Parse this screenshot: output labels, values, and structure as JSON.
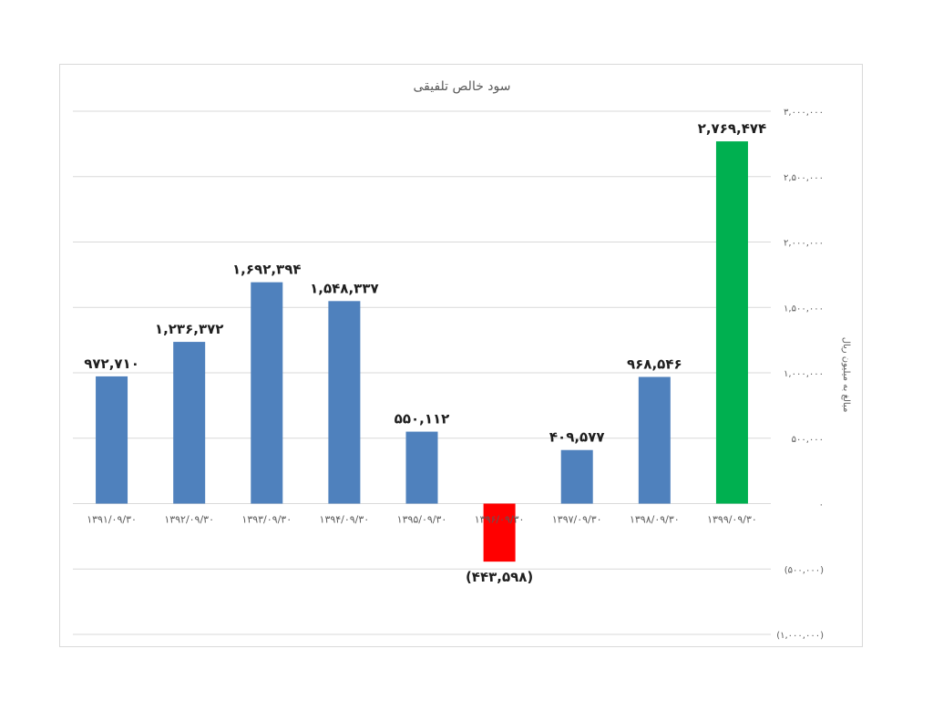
{
  "chart_data": {
    "type": "bar",
    "title": "سود خالص تلفیقی",
    "ylabel": "مبالغ به میلیون ریال",
    "xlabel": "",
    "ylim": [
      -1000000,
      3000000
    ],
    "grid": true,
    "categories": [
      "۱۳۹۱/۰۹/۳۰",
      "۱۳۹۲/۰۹/۳۰",
      "۱۳۹۳/۰۹/۳۰",
      "۱۳۹۴/۰۹/۳۰",
      "۱۳۹۵/۰۹/۳۰",
      "۱۳۹۶/۰۹/۳۰",
      "۱۳۹۷/۰۹/۳۰",
      "۱۳۹۸/۰۹/۳۰",
      "۱۳۹۹/۰۹/۳۰"
    ],
    "values": [
      972710,
      1236372,
      1692394,
      1548337,
      550112,
      -443598,
      409577,
      968546,
      2769474
    ],
    "data_labels": [
      "۹۷۲,۷۱۰",
      "۱,۲۳۶,۳۷۲",
      "۱,۶۹۲,۳۹۴",
      "۱,۵۴۸,۳۳۷",
      "۵۵۰,۱۱۲",
      "(۴۴۳,۵۹۸)",
      "۴۰۹,۵۷۷",
      "۹۶۸,۵۴۶",
      "۲,۷۶۹,۴۷۴"
    ],
    "bar_colors": [
      "#4f81bd",
      "#4f81bd",
      "#4f81bd",
      "#4f81bd",
      "#4f81bd",
      "#ff0000",
      "#4f81bd",
      "#4f81bd",
      "#00b050"
    ],
    "yticks": [
      {
        "value": 3000000,
        "label": "۳,۰۰۰,۰۰۰",
        "color": "#595959"
      },
      {
        "value": 2500000,
        "label": "۲,۵۰۰,۰۰۰",
        "color": "#595959"
      },
      {
        "value": 2000000,
        "label": "۲,۰۰۰,۰۰۰",
        "color": "#595959"
      },
      {
        "value": 1500000,
        "label": "۱,۵۰۰,۰۰۰",
        "color": "#595959"
      },
      {
        "value": 1000000,
        "label": "۱,۰۰۰,۰۰۰",
        "color": "#595959"
      },
      {
        "value": 500000,
        "label": "۵۰۰,۰۰۰",
        "color": "#595959"
      },
      {
        "value": 0,
        "label": "۰",
        "color": "#595959"
      },
      {
        "value": -500000,
        "label": "(۵۰۰,۰۰۰)",
        "color": "#ff0000"
      },
      {
        "value": -1000000,
        "label": "(۱,۰۰۰,۰۰۰)",
        "color": "#ff0000"
      }
    ],
    "negative_label_color": "#ff0000",
    "gridline_color": "#d9d9d9"
  }
}
